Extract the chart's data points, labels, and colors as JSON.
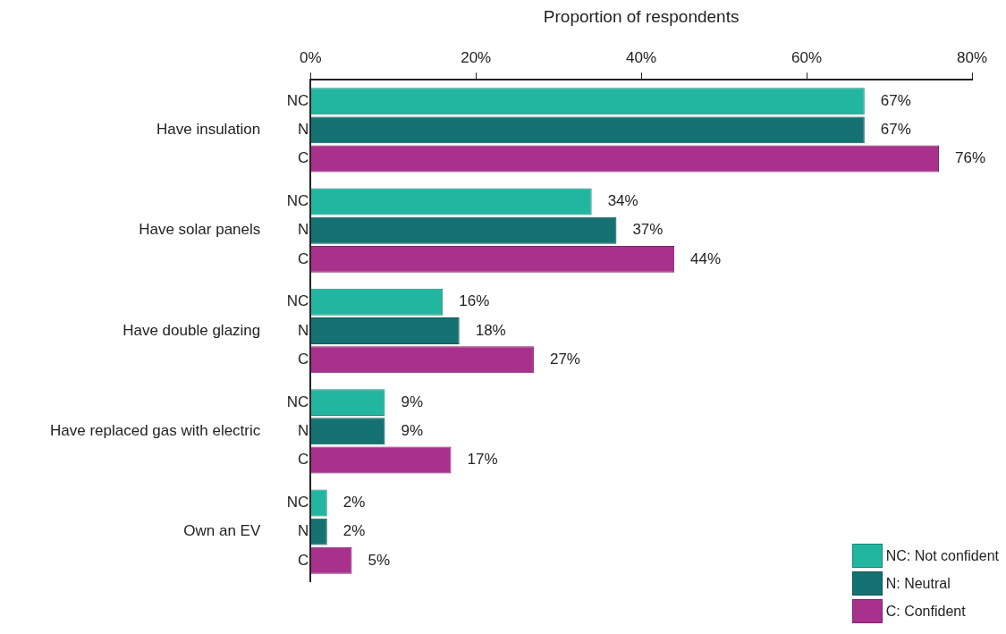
{
  "chart_data": {
    "type": "bar",
    "orientation": "horizontal",
    "xlabel": "Proportion of respondents",
    "categories": [
      "Have insulation",
      "Have solar panels",
      "Have double glazing",
      "Have replaced gas with electric",
      "Own an EV"
    ],
    "series": [
      {
        "name": "NC: Not confident",
        "color": "#22b5a0",
        "values": [
          67,
          34,
          16,
          9,
          2
        ],
        "value_labels": [
          "67%",
          "34%",
          "16%",
          "9%",
          "2%"
        ]
      },
      {
        "name": "N: Neutral",
        "color": "#147272",
        "values": [
          67,
          37,
          18,
          9,
          2
        ],
        "value_labels": [
          "67%",
          "37%",
          "18%",
          "9%",
          "2%"
        ]
      },
      {
        "name": "C: Confident",
        "color": "#a8318c",
        "values": [
          76,
          44,
          27,
          17,
          5
        ],
        "value_labels": [
          "76%",
          "44%",
          "27%",
          "17%",
          "5%"
        ]
      }
    ],
    "xlim": [
      0,
      80
    ],
    "xticks": [
      {
        "value": 0,
        "label": "0%"
      },
      {
        "value": 20,
        "label": "20%"
      },
      {
        "value": 40,
        "label": "40%"
      },
      {
        "value": 60,
        "label": "60%"
      },
      {
        "value": 80,
        "label": "80%"
      }
    ],
    "annotations": [
      "NC",
      "N",
      "C"
    ],
    "grid": false,
    "legend": "bottom right"
  }
}
